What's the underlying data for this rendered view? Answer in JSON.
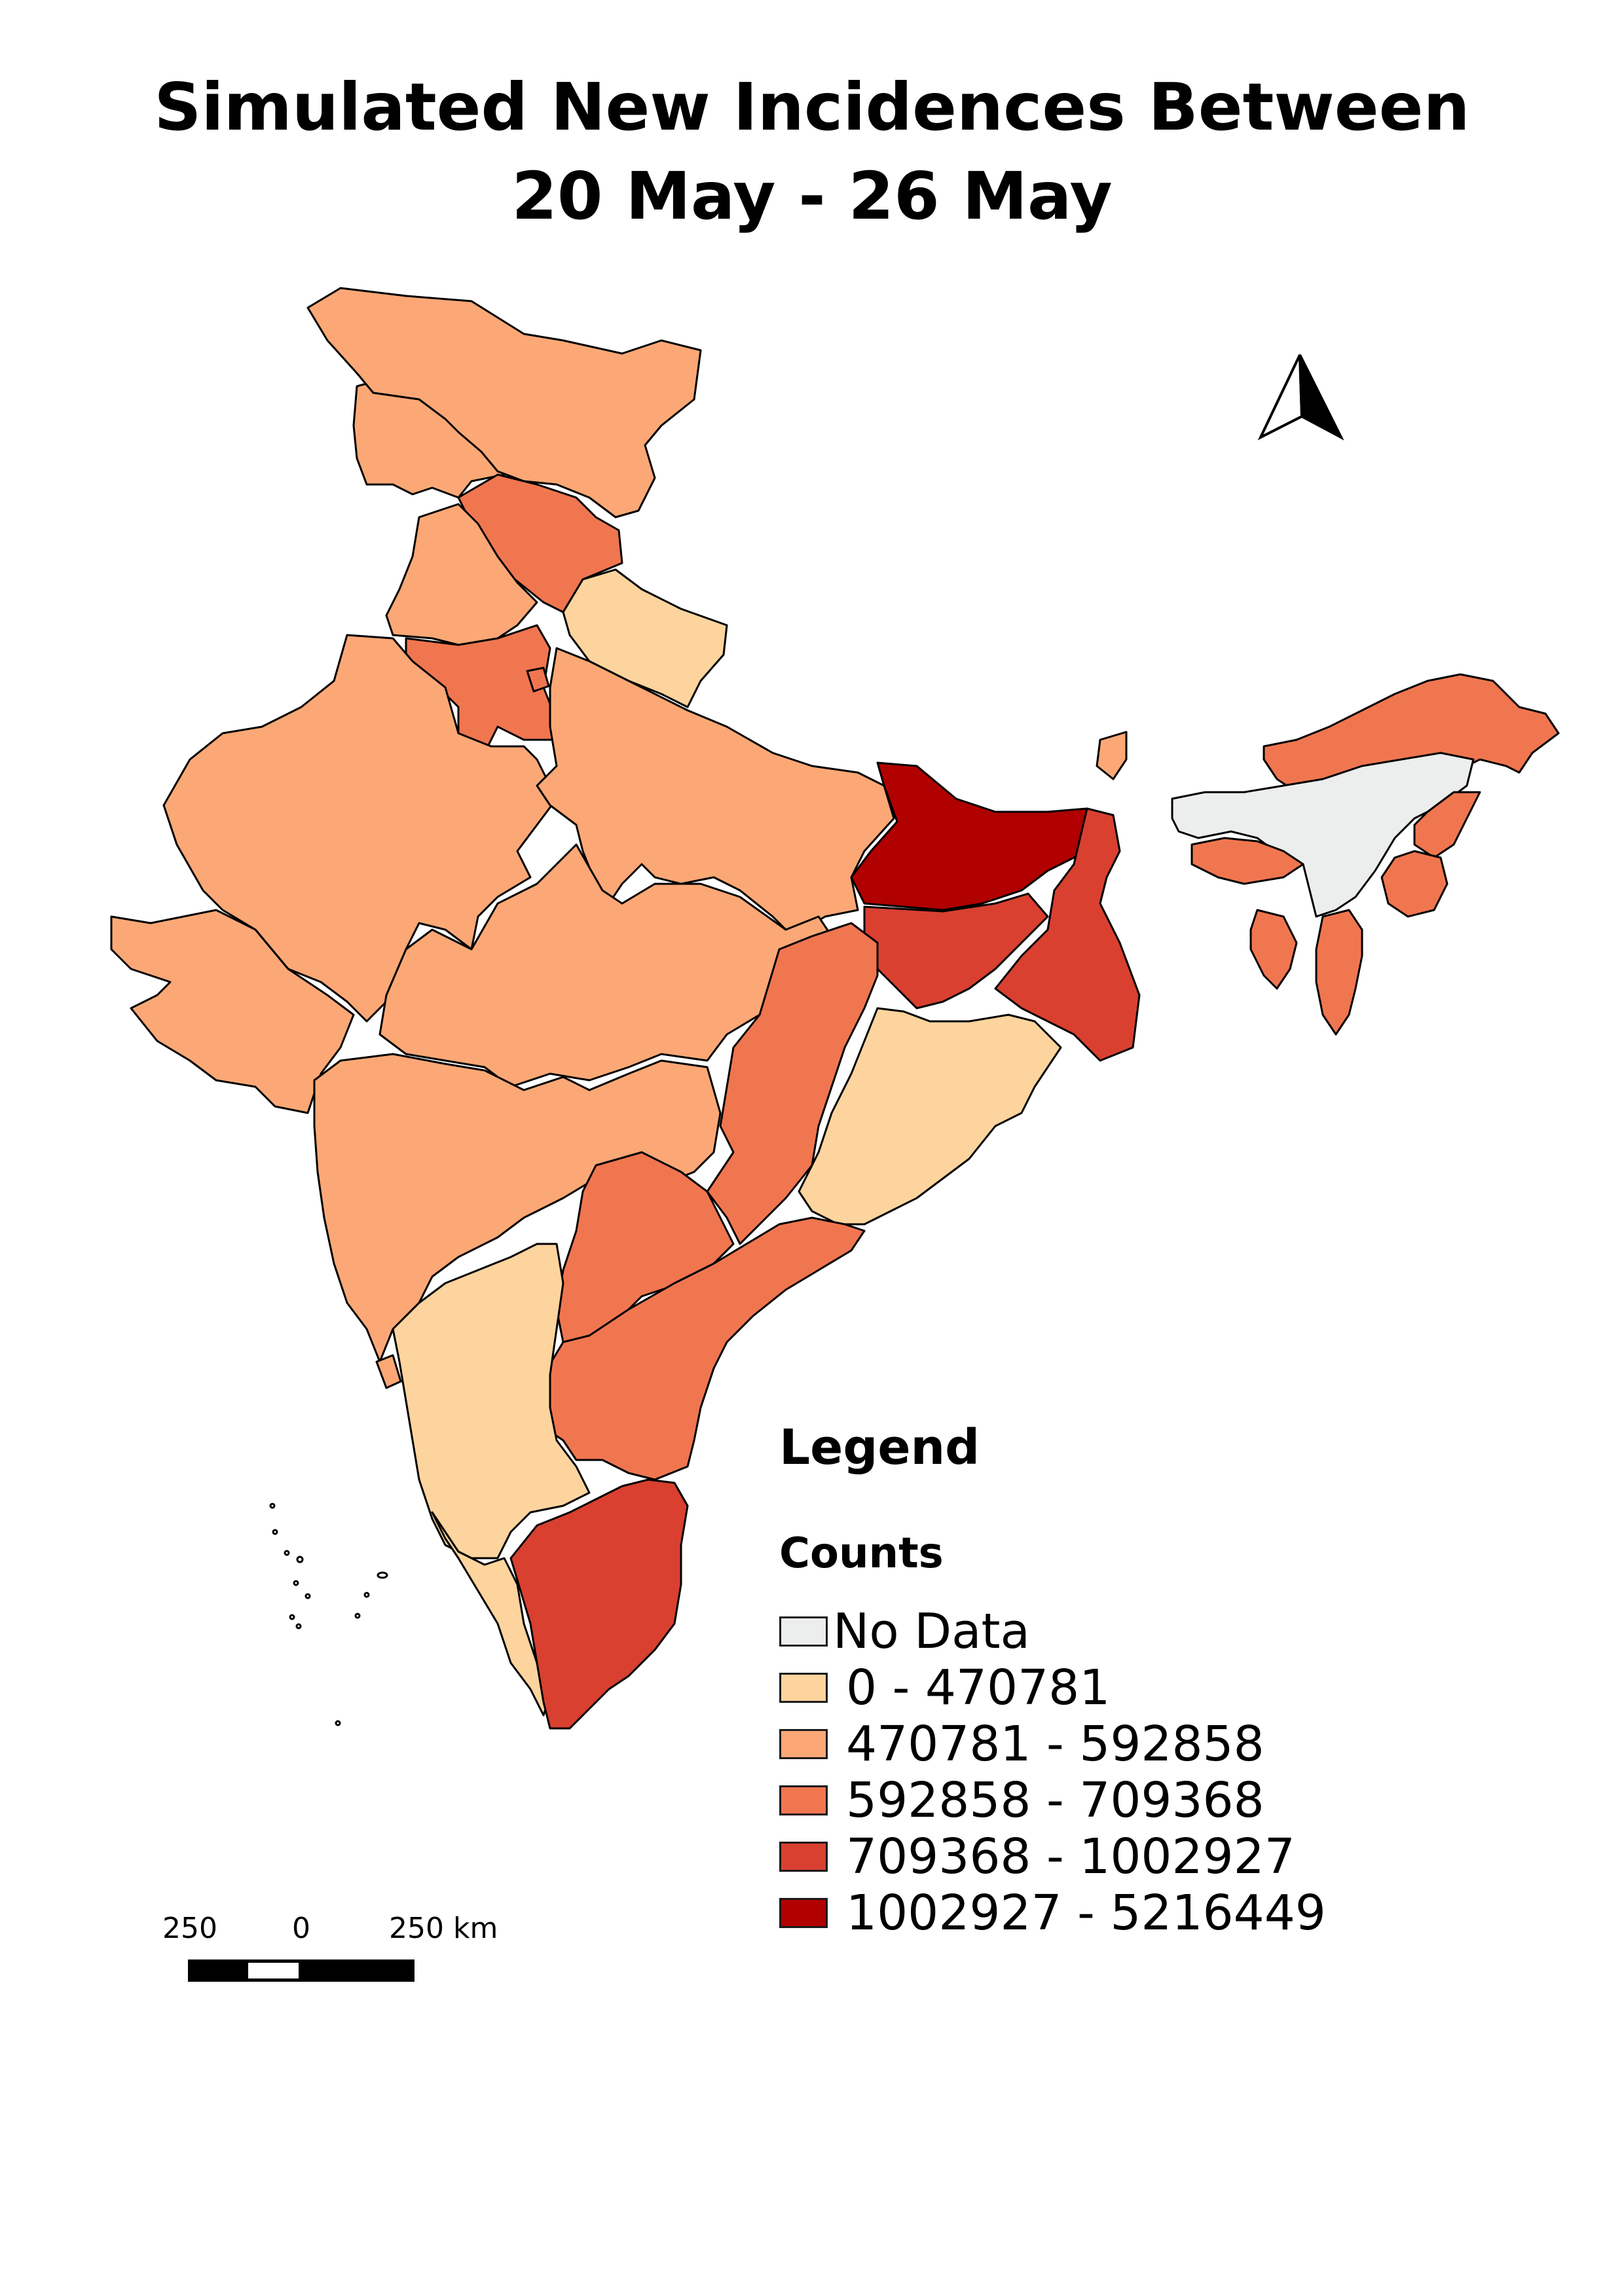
{
  "title": {
    "line1": "Simulated New Incidences Between",
    "line2": "20 May - 26 May"
  },
  "legend": {
    "heading": "Legend",
    "subheading": "Counts",
    "items": [
      {
        "label": "No Data",
        "color": "#eceded"
      },
      {
        "label": "0 - 470781",
        "color": "#fdd49e"
      },
      {
        "label": "470781 - 592858",
        "color": "#fca876"
      },
      {
        "label": "592858 - 709368",
        "color": "#f07650"
      },
      {
        "label": "709368 - 1002927",
        "color": "#d94030"
      },
      {
        "label": "1002927 - 5216449",
        "color": "#b00000"
      }
    ]
  },
  "scale_bar": {
    "labels": [
      "250",
      "0",
      "250 km"
    ]
  },
  "north_arrow": {
    "icon": "north-arrow-icon"
  },
  "map": {
    "border_color": "#000000",
    "regions": [
      {
        "name": "Jammu and Kashmir",
        "class": "470781 - 592858"
      },
      {
        "name": "Ladakh",
        "class": "470781 - 592858"
      },
      {
        "name": "Himachal Pradesh",
        "class": "592858 - 709368"
      },
      {
        "name": "Punjab",
        "class": "470781 - 592858"
      },
      {
        "name": "Uttarakhand",
        "class": "0 - 470781"
      },
      {
        "name": "Haryana",
        "class": "592858 - 709368"
      },
      {
        "name": "Rajasthan",
        "class": "470781 - 592858"
      },
      {
        "name": "Uttar Pradesh",
        "class": "470781 - 592858"
      },
      {
        "name": "Gujarat",
        "class": "470781 - 592858"
      },
      {
        "name": "Madhya Pradesh",
        "class": "470781 - 592858"
      },
      {
        "name": "Bihar",
        "class": "1002927 - 5216449"
      },
      {
        "name": "Jharkhand",
        "class": "709368 - 1002927"
      },
      {
        "name": "West Bengal",
        "class": "709368 - 1002927"
      },
      {
        "name": "Sikkim",
        "class": "470781 - 592858"
      },
      {
        "name": "Arunachal Pradesh",
        "class": "592858 - 709368"
      },
      {
        "name": "Assam",
        "class": "No Data"
      },
      {
        "name": "Meghalaya",
        "class": "592858 - 709368"
      },
      {
        "name": "Nagaland",
        "class": "592858 - 709368"
      },
      {
        "name": "Manipur",
        "class": "592858 - 709368"
      },
      {
        "name": "Mizoram",
        "class": "592858 - 709368"
      },
      {
        "name": "Tripura",
        "class": "592858 - 709368"
      },
      {
        "name": "Chhattisgarh",
        "class": "592858 - 709368"
      },
      {
        "name": "Odisha",
        "class": "0 - 470781"
      },
      {
        "name": "Maharashtra",
        "class": "470781 - 592858"
      },
      {
        "name": "Telangana",
        "class": "592858 - 709368"
      },
      {
        "name": "Andhra Pradesh",
        "class": "592858 - 709368"
      },
      {
        "name": "Karnataka",
        "class": "0 - 470781"
      },
      {
        "name": "Goa",
        "class": "470781 - 592858"
      },
      {
        "name": "Kerala",
        "class": "0 - 470781"
      },
      {
        "name": "Tamil Nadu",
        "class": "709368 - 1002927"
      },
      {
        "name": "Delhi",
        "class": "592858 - 709368"
      }
    ]
  }
}
